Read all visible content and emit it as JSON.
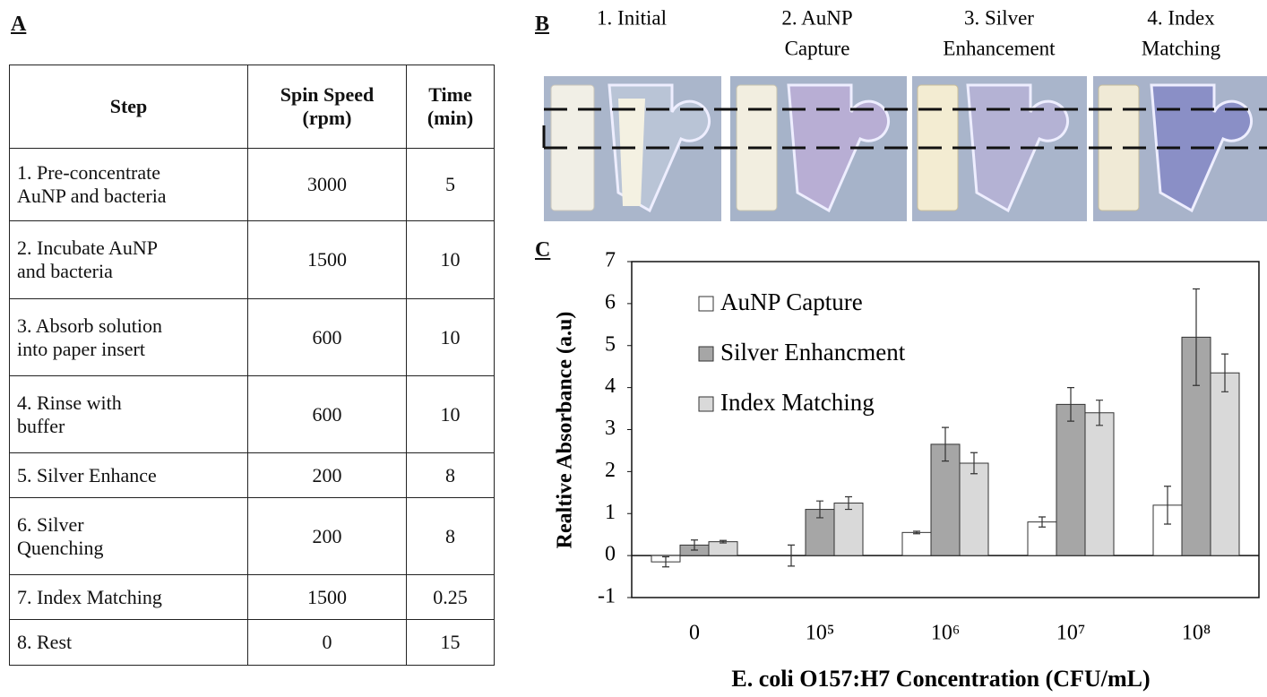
{
  "panel_a": {
    "label": "A",
    "table": {
      "header": [
        [
          "Step"
        ],
        [
          "Spin Speed",
          "(rpm)"
        ],
        [
          "Time",
          "(min)"
        ]
      ],
      "rows": [
        [
          [
            "1. Pre-concentrate",
            "AuNP and bacteria"
          ],
          3000,
          5
        ],
        [
          [
            "2. Incubate AuNP",
            "and bacteria"
          ],
          1500,
          10
        ],
        [
          [
            "3. Absorb solution",
            "into paper insert"
          ],
          600,
          10
        ],
        [
          [
            "4. Rinse with",
            "buffer"
          ],
          600,
          10
        ],
        [
          [
            "5. Silver Enhance"
          ],
          200,
          8
        ],
        [
          [
            "6. Silver",
            "Quenching"
          ],
          200,
          8
        ],
        [
          [
            "7. Index Matching"
          ],
          1500,
          0.25
        ],
        [
          [
            "8. Rest"
          ],
          0,
          15
        ]
      ]
    }
  },
  "panel_b": {
    "label": "B",
    "steps": [
      [
        "1. Initial"
      ],
      [
        "2. AuNP",
        "Capture"
      ],
      [
        "3. Silver",
        "Enhancement"
      ],
      [
        "4. Index",
        "Matching"
      ]
    ]
  },
  "chart_data": {
    "type": "bar",
    "panel_label": "C",
    "ylabel": "Realtive Absorbance (a.u)",
    "xlabel": "E. coli O157:H7 Concentration (CFU/mL)",
    "categories": [
      "0",
      "10⁵",
      "10⁶",
      "10⁷",
      "10⁸"
    ],
    "series": [
      {
        "name": "AuNP Capture",
        "color": "#ffffff",
        "values": [
          -0.15,
          0,
          0.55,
          0.8,
          1.2
        ],
        "errors": [
          0.12,
          0.25,
          0.03,
          0.12,
          0.45
        ]
      },
      {
        "name": "Silver Enhancment",
        "color": "#a6a6a6",
        "values": [
          0.25,
          1.1,
          2.65,
          3.6,
          5.2
        ],
        "errors": [
          0.12,
          0.2,
          0.4,
          0.4,
          1.15
        ]
      },
      {
        "name": "Index Matching",
        "color": "#d9d9d9",
        "values": [
          0.33,
          1.25,
          2.2,
          3.4,
          4.35
        ],
        "errors": [
          0.03,
          0.15,
          0.25,
          0.3,
          0.45
        ]
      }
    ],
    "ylim": [
      -1,
      7
    ],
    "yticks": [
      -1,
      0,
      1,
      2,
      3,
      4,
      5,
      6,
      7
    ],
    "grid": false,
    "legend": "upper left"
  }
}
